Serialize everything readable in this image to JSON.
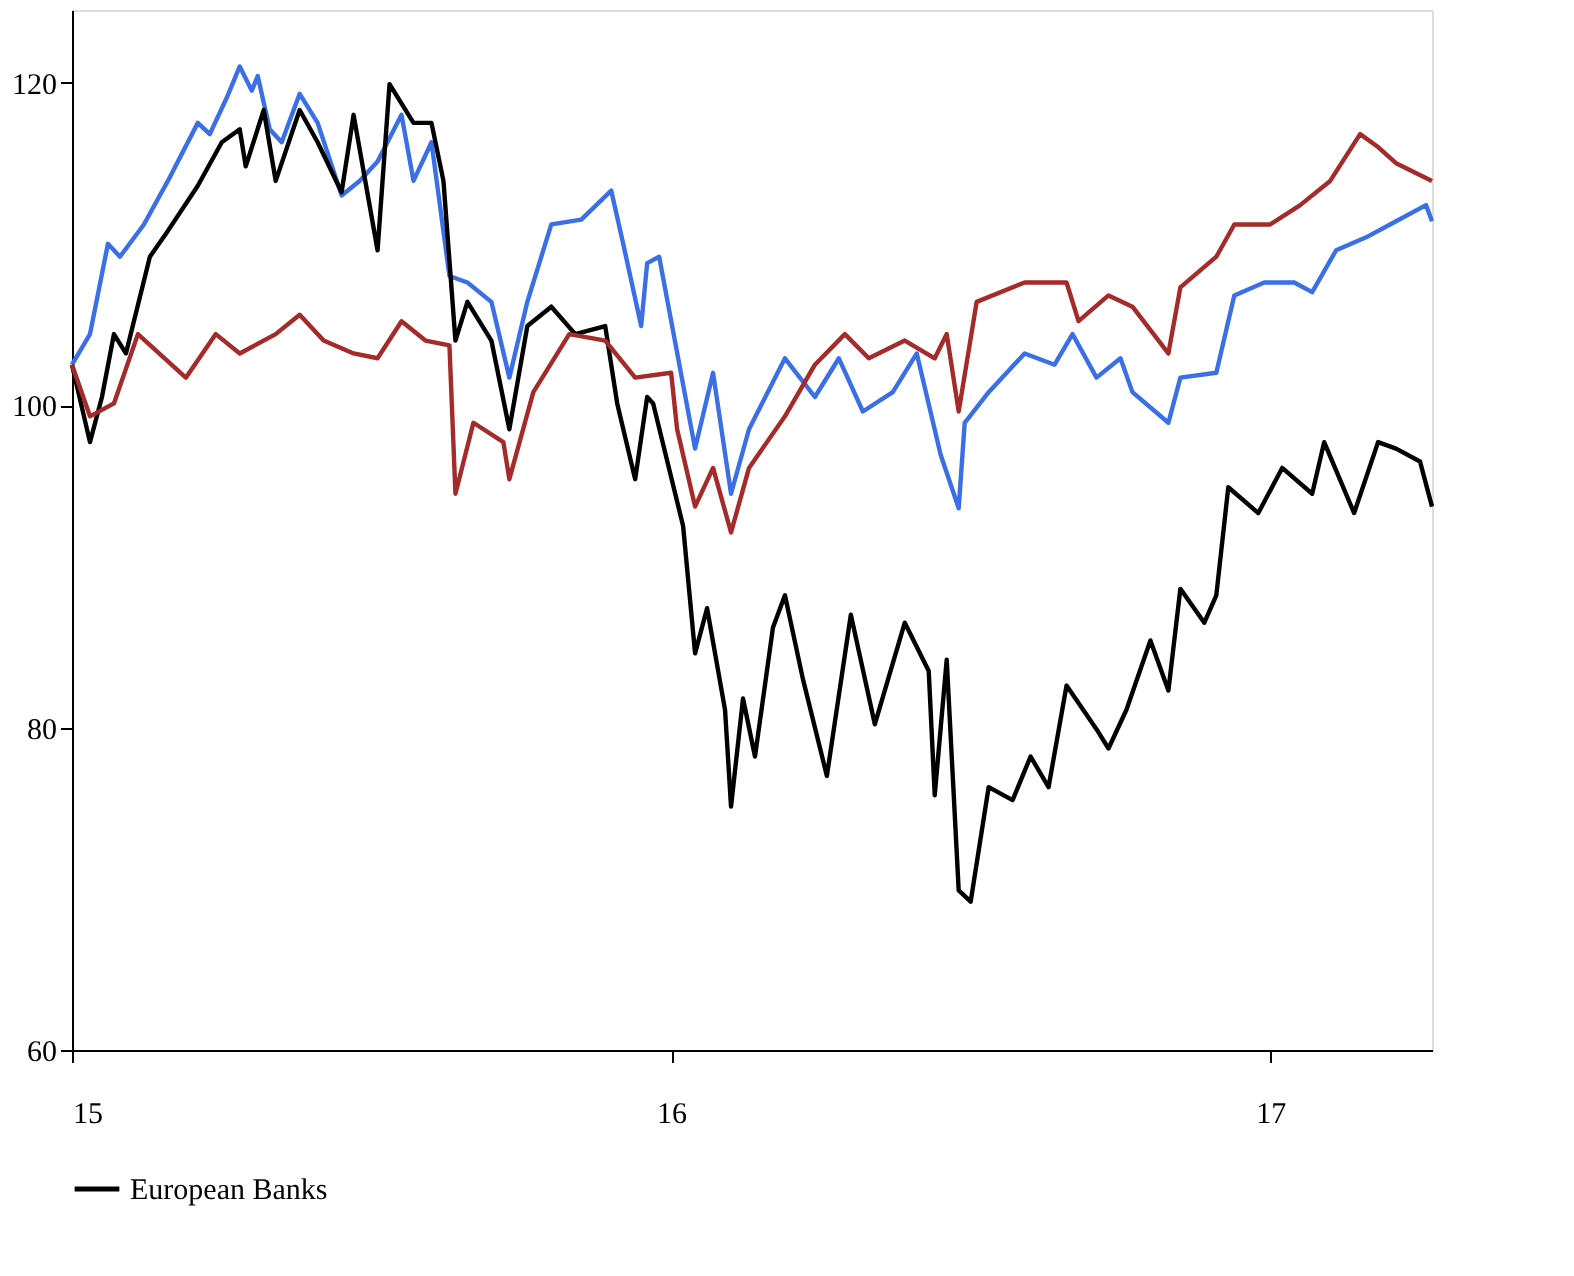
{
  "chart_data": {
    "type": "line",
    "xlim": [
      15,
      17.27
    ],
    "xticks": [
      15,
      16,
      17
    ],
    "ylim": [
      60,
      124.5
    ],
    "yticks": [
      60,
      80,
      100,
      120
    ],
    "grid": false,
    "legend": "bottom",
    "marker": "none",
    "line_style": "solid",
    "series": [
      {
        "color": "#3b6fe8",
        "x": [
          15.0,
          15.03,
          15.06,
          15.08,
          15.12,
          15.16,
          15.21,
          15.23,
          15.26,
          15.28,
          15.3,
          15.31,
          15.33,
          15.35,
          15.38,
          15.41,
          15.45,
          15.48,
          15.51,
          15.55,
          15.57,
          15.6,
          15.63,
          15.66,
          15.7,
          15.73,
          15.76,
          15.8,
          15.85,
          15.9,
          15.92,
          15.95,
          15.96,
          15.98,
          16.04,
          16.07,
          16.1,
          16.13,
          16.19,
          16.24,
          16.28,
          16.32,
          16.37,
          16.41,
          16.45,
          16.48,
          16.49,
          16.53,
          16.59,
          16.64,
          16.67,
          16.71,
          16.75,
          16.77,
          16.83,
          16.85,
          16.91,
          16.94,
          16.99,
          17.04,
          17.07,
          17.11,
          17.16,
          17.2,
          17.26,
          17.27
        ],
        "values": [
          102.5,
          104.4,
          110.0,
          109.2,
          111.2,
          113.9,
          117.5,
          116.8,
          119.2,
          121.0,
          119.5,
          120.4,
          117.1,
          116.3,
          119.3,
          117.5,
          113.0,
          113.9,
          115.1,
          118.0,
          113.9,
          116.3,
          108.0,
          107.6,
          106.4,
          101.7,
          106.4,
          111.2,
          111.5,
          113.3,
          110.0,
          104.9,
          108.8,
          109.2,
          97.3,
          102.0,
          94.5,
          98.5,
          102.9,
          100.5,
          102.9,
          99.6,
          100.8,
          103.2,
          96.9,
          93.6,
          98.9,
          100.8,
          103.2,
          102.5,
          104.4,
          101.7,
          102.9,
          100.8,
          98.9,
          101.7,
          102.0,
          106.8,
          107.6,
          107.6,
          107.0,
          109.6,
          110.4,
          111.2,
          112.4,
          111.4
        ]
      },
      {
        "name": "European Banks",
        "color": "#000000",
        "x": [
          15.0,
          15.03,
          15.05,
          15.07,
          15.09,
          15.13,
          15.16,
          15.21,
          15.25,
          15.28,
          15.29,
          15.32,
          15.34,
          15.38,
          15.41,
          15.45,
          15.47,
          15.51,
          15.53,
          15.57,
          15.6,
          15.62,
          15.64,
          15.66,
          15.7,
          15.73,
          15.76,
          15.8,
          15.84,
          15.89,
          15.91,
          15.94,
          15.96,
          15.97,
          16.02,
          16.04,
          16.06,
          16.09,
          16.1,
          16.12,
          16.14,
          16.17,
          16.19,
          16.22,
          16.26,
          16.3,
          16.34,
          16.39,
          16.43,
          16.44,
          16.46,
          16.48,
          16.5,
          16.53,
          16.57,
          16.6,
          16.63,
          16.66,
          16.71,
          16.73,
          16.76,
          16.8,
          16.83,
          16.85,
          16.89,
          16.91,
          16.93,
          16.98,
          17.02,
          17.07,
          17.09,
          17.14,
          17.18,
          17.21,
          17.25,
          17.27
        ],
        "values": [
          102.5,
          97.7,
          100.5,
          104.4,
          103.2,
          109.2,
          110.8,
          113.6,
          116.3,
          117.1,
          114.8,
          118.3,
          113.9,
          118.3,
          116.3,
          113.2,
          118.0,
          109.6,
          119.9,
          117.5,
          117.5,
          113.9,
          104.0,
          106.4,
          104.0,
          98.5,
          104.9,
          106.1,
          104.4,
          104.9,
          100.1,
          95.4,
          100.5,
          100.1,
          92.5,
          84.6,
          87.4,
          81.1,
          75.1,
          81.8,
          78.2,
          86.2,
          88.2,
          83.0,
          77.0,
          87.0,
          80.2,
          86.5,
          83.5,
          75.8,
          84.2,
          69.9,
          69.2,
          76.3,
          75.5,
          78.2,
          76.3,
          82.6,
          79.9,
          78.7,
          81.1,
          85.4,
          82.3,
          88.6,
          86.5,
          88.2,
          94.9,
          93.3,
          96.1,
          94.5,
          97.7,
          93.3,
          97.7,
          97.3,
          96.5,
          93.7
        ]
      },
      {
        "color": "#a52a2a",
        "x": [
          15.0,
          15.03,
          15.07,
          15.11,
          15.19,
          15.24,
          15.28,
          15.34,
          15.38,
          15.42,
          15.47,
          15.51,
          15.55,
          15.59,
          15.63,
          15.64,
          15.67,
          15.72,
          15.73,
          15.77,
          15.83,
          15.89,
          15.94,
          16.0,
          16.01,
          16.04,
          16.07,
          16.1,
          16.13,
          16.19,
          16.24,
          16.29,
          16.33,
          16.39,
          16.44,
          16.46,
          16.48,
          16.51,
          16.59,
          16.66,
          16.68,
          16.73,
          16.77,
          16.83,
          16.85,
          16.91,
          16.94,
          17.0,
          17.05,
          17.1,
          17.15,
          17.18,
          17.21,
          17.27
        ],
        "values": [
          102.5,
          99.3,
          100.1,
          104.4,
          101.7,
          104.4,
          103.2,
          104.4,
          105.6,
          104.0,
          103.2,
          102.9,
          105.2,
          104.0,
          103.7,
          94.5,
          98.9,
          97.7,
          95.4,
          100.8,
          104.4,
          104.0,
          101.7,
          102.0,
          98.5,
          93.7,
          96.1,
          92.1,
          96.1,
          99.3,
          102.5,
          104.4,
          102.9,
          104.0,
          102.9,
          104.4,
          99.6,
          106.4,
          107.6,
          107.6,
          105.2,
          106.8,
          106.1,
          103.2,
          107.3,
          109.2,
          111.2,
          111.2,
          112.4,
          113.9,
          116.8,
          116.0,
          115.0,
          113.9
        ]
      }
    ]
  }
}
